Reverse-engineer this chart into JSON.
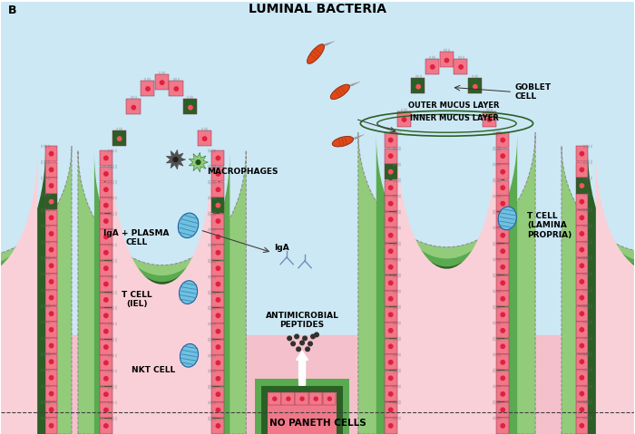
{
  "bg_blue": "#cce8f4",
  "bg_pink": "#f4c0cc",
  "c_green_light": "#92cc7a",
  "c_green_med": "#5aaa50",
  "c_green_dark": "#2a6025",
  "c_pink_cell": "#f07888",
  "c_pink_lumen": "#fad0d8",
  "c_dark_cell": "#2a6025",
  "c_red_dot": "#e02040",
  "c_bacteria": "#e04818",
  "c_blue_cell": "#70c0e0",
  "c_blue_stripe": "#3888b8",
  "c_macro_dark": "#505050",
  "c_macro_green": "#90c878",
  "title": "LUMINAL BACTERIA",
  "label_b": "B",
  "label_outer": "OUTER MUCUS LAYER",
  "label_inner": "INNER MUCUS LAYER",
  "label_goblet": "GOBLET\nCELL",
  "label_macro": "MACROPHAGES",
  "label_plasma": "IgA + PLASMA\nCELL",
  "label_iga": "IgA",
  "label_tcell_iel": "T CELL\n(IEL)",
  "label_nkt": "NKT CELL",
  "label_tcell_lp": "T CELL\n(LAMINA\nPROPRIA)",
  "label_antimicrobial": "ANTIMICROBIAL\nPEPTIDES",
  "label_no_paneth": "NO PANETH CELLS",
  "fs_title": 10,
  "fs_label": 6.5,
  "fs_b": 9
}
